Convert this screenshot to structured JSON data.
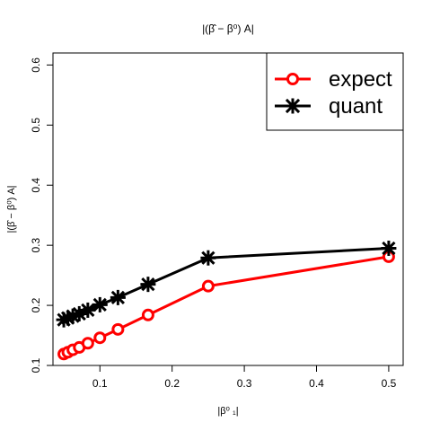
{
  "chart_data": {
    "type": "line",
    "title": "|(β̂ − β⁰) A|",
    "xlabel": "|β⁰ ₁|",
    "ylabel": "|(β̂ − β⁰) A|",
    "xlim": [
      0.035,
      0.52
    ],
    "ylim": [
      0.1,
      0.62
    ],
    "xticks": [
      "0.1",
      "0.2",
      "0.3",
      "0.4",
      "0.5"
    ],
    "yticks": [
      "0.1",
      "0.2",
      "0.3",
      "0.4",
      "0.5",
      "0.6"
    ],
    "grid": false,
    "legend": {
      "position": "top-right",
      "entries": [
        "expect",
        "quant"
      ]
    },
    "series": [
      {
        "name": "expect",
        "color": "#ff0000",
        "marker": "circle",
        "x": [
          0.05,
          0.0556,
          0.0625,
          0.0714,
          0.0833,
          0.1,
          0.125,
          0.1667,
          0.25,
          0.5
        ],
        "y": [
          0.119,
          0.122,
          0.126,
          0.13,
          0.137,
          0.146,
          0.16,
          0.184,
          0.232,
          0.281
        ]
      },
      {
        "name": "quant",
        "color": "#000000",
        "marker": "asterisk",
        "x": [
          0.05,
          0.0556,
          0.0625,
          0.0714,
          0.0833,
          0.1,
          0.125,
          0.1667,
          0.25,
          0.5
        ],
        "y": [
          0.176,
          0.179,
          0.182,
          0.186,
          0.192,
          0.201,
          0.213,
          0.235,
          0.279,
          0.295
        ]
      }
    ]
  }
}
